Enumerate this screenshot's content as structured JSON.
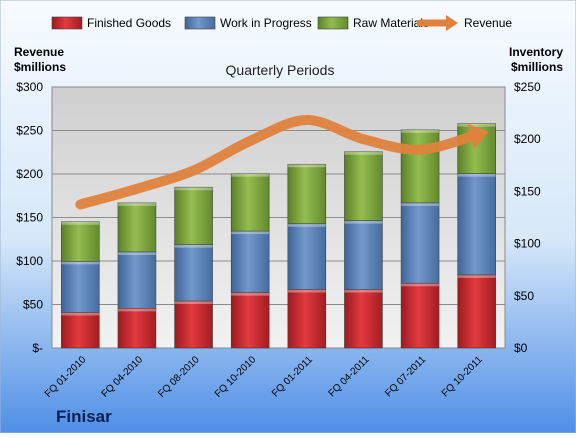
{
  "chart_data": {
    "type": "bar",
    "title": "Quarterly Periods",
    "company": "Finisar",
    "left_axis_label": [
      "Revenue",
      "$millions"
    ],
    "right_axis_label": [
      "Inventory",
      "$millions"
    ],
    "categories": [
      "FQ 01-2010",
      "FQ 04-2010",
      "FQ 08-2010",
      "FQ 10-2010",
      "FQ 01-2011",
      "FQ 04-2011",
      "FQ 07-2011",
      "FQ 10-2011"
    ],
    "left_ticks": [
      "$-",
      "$50",
      "$100",
      "$150",
      "$200",
      "$250",
      "$300"
    ],
    "right_ticks": [
      "$0",
      "$50",
      "$100",
      "$150",
      "$200",
      "$250"
    ],
    "left_ylim": [
      0,
      300
    ],
    "right_ylim": [
      0,
      250
    ],
    "grid": true,
    "legend_position": "top",
    "series": [
      {
        "name": "Finished Goods",
        "axis": "right",
        "color": "#c0262c",
        "values": [
          34,
          38,
          45,
          53,
          56,
          56,
          62,
          70
        ]
      },
      {
        "name": "Work in Progress",
        "axis": "right",
        "color": "#5a7fb4",
        "values": [
          49,
          54,
          54,
          59,
          63,
          66,
          77,
          97
        ]
      },
      {
        "name": "Raw Materials",
        "axis": "right",
        "color": "#7aa23a",
        "values": [
          38,
          47,
          55,
          55,
          57,
          66,
          70,
          48
        ]
      },
      {
        "name": "Revenue",
        "axis": "left",
        "type": "line",
        "color": "#e0823c",
        "values": [
          165,
          183,
          204,
          238,
          262,
          240,
          228,
          245
        ]
      }
    ]
  }
}
